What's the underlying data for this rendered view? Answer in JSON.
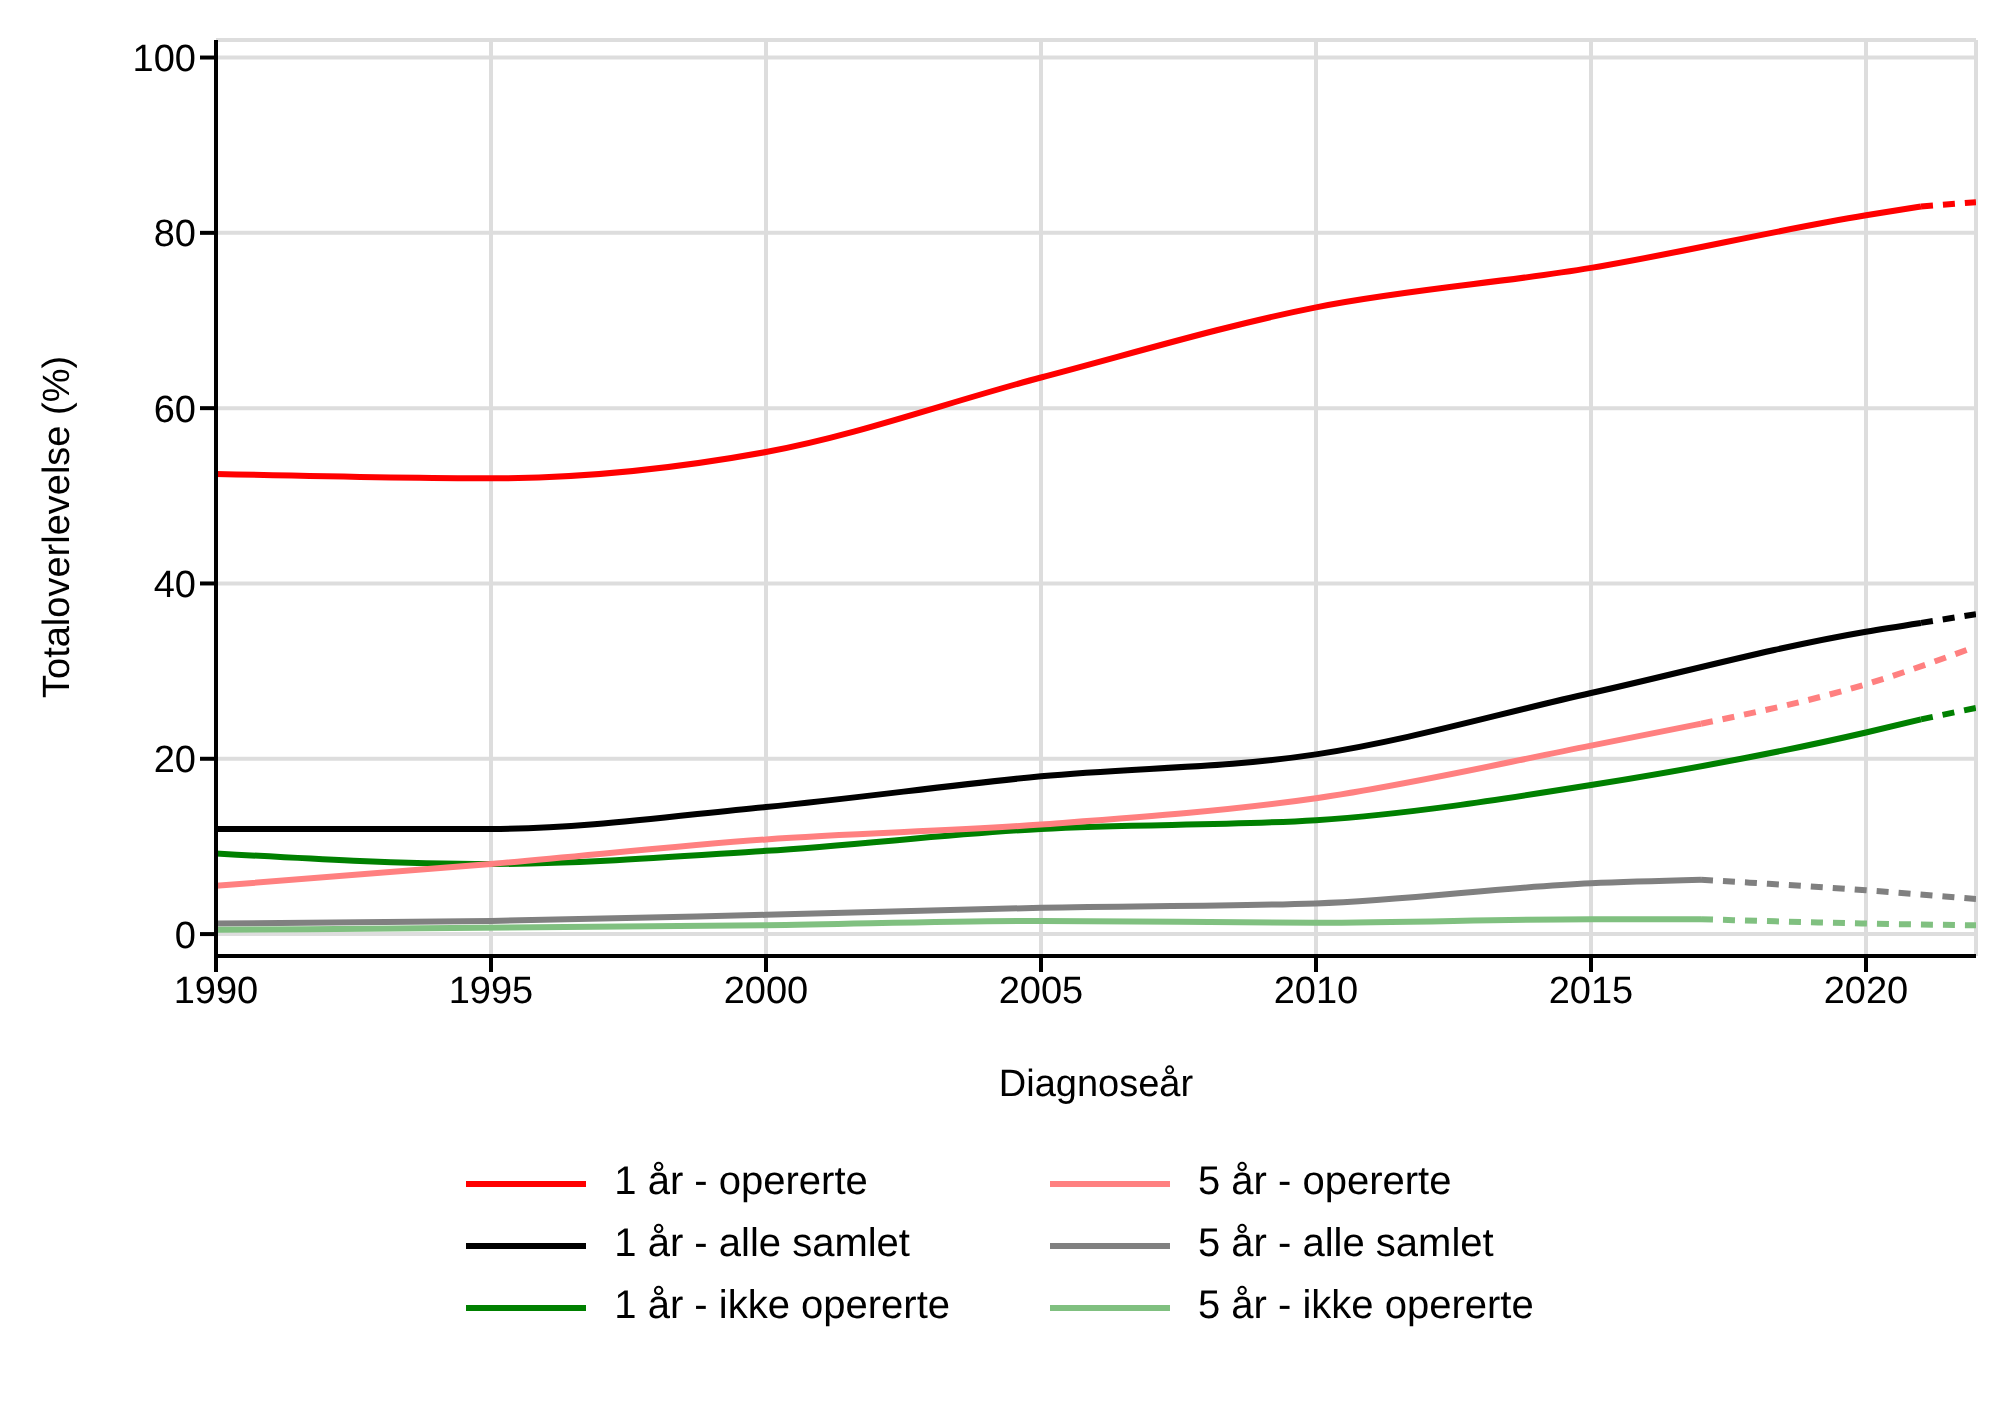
{
  "chart_data": {
    "type": "line",
    "xlabel": "Diagnoseår",
    "ylabel": "Totaloverlevelse (%)",
    "xlim": [
      1990,
      2022
    ],
    "xticks": [
      1990,
      1995,
      2000,
      2005,
      2010,
      2015,
      2020
    ],
    "ylim": [
      -2.5,
      102
    ],
    "yticks": [
      0,
      20,
      40,
      60,
      80,
      100
    ],
    "grid": true,
    "legend": "bottom",
    "marker": "none",
    "series": [
      {
        "name": "1 år - opererte",
        "color": "#ff0000",
        "line_style": "solid",
        "x": [
          1990,
          1995,
          2000,
          2005,
          2010,
          2015,
          2020,
          2021
        ],
        "values": [
          52.5,
          52,
          55,
          63.5,
          71.5,
          76,
          82,
          83
        ]
      },
      {
        "name": "1 år - alle samlet",
        "color": "#000000",
        "line_style": "solid",
        "x": [
          1990,
          1995,
          2000,
          2005,
          2010,
          2015,
          2020,
          2021
        ],
        "values": [
          12,
          12,
          14.5,
          18,
          20.5,
          27.5,
          34.5,
          35.5
        ]
      },
      {
        "name": "1 år - ikke opererte",
        "color": "#008000",
        "line_style": "solid",
        "x": [
          1990,
          1995,
          2000,
          2005,
          2010,
          2015,
          2020,
          2021
        ],
        "values": [
          9.2,
          8,
          9.5,
          12,
          13,
          17,
          23,
          24.5
        ]
      },
      {
        "name": "5 år - opererte",
        "color": "#ff8080",
        "line_style": "solid",
        "x": [
          1990,
          1995,
          2000,
          2005,
          2010,
          2015,
          2017
        ],
        "values": [
          5.5,
          8,
          10.8,
          12.5,
          15.5,
          21.5,
          24
        ]
      },
      {
        "name": "5 år - alle samlet",
        "color": "#808080",
        "line_style": "solid",
        "x": [
          1990,
          1995,
          2000,
          2005,
          2010,
          2015,
          2017
        ],
        "values": [
          1.2,
          1.5,
          2.2,
          3,
          3.5,
          5.8,
          6.2
        ]
      },
      {
        "name": "5 år - ikke opererte",
        "color": "#80c080",
        "line_style": "solid",
        "x": [
          1990,
          2000,
          2005,
          2010,
          2015,
          2017
        ],
        "values": [
          0.5,
          1,
          1.5,
          1.3,
          1.7,
          1.7
        ]
      },
      {
        "color": "#ff0000",
        "line_style": "dashed",
        "x": [
          2021,
          2022
        ],
        "values": [
          83,
          83.5
        ]
      },
      {
        "color": "#000000",
        "line_style": "dashed",
        "x": [
          2021,
          2022
        ],
        "values": [
          35.5,
          36.5
        ]
      },
      {
        "color": "#008000",
        "line_style": "dashed",
        "x": [
          2021,
          2022
        ],
        "values": [
          24.5,
          25.8
        ]
      },
      {
        "color": "#ff8080",
        "line_style": "dashed",
        "x": [
          2017,
          2020,
          2022
        ],
        "values": [
          24,
          28.5,
          32.8
        ]
      },
      {
        "color": "#808080",
        "line_style": "dashed",
        "x": [
          2017,
          2020,
          2022
        ],
        "values": [
          6.2,
          5,
          4
        ]
      },
      {
        "color": "#80c080",
        "line_style": "dashed",
        "x": [
          2017,
          2020,
          2022
        ],
        "values": [
          1.7,
          1.2,
          1
        ]
      }
    ]
  }
}
